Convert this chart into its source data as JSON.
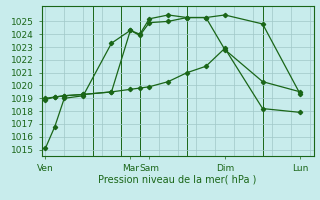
{
  "xlabel": "Pression niveau de la mer( hPa )",
  "bg_color": "#c8ecec",
  "grid_color": "#a0c8c8",
  "line_color": "#1a6618",
  "ylim": [
    1014.5,
    1026.2
  ],
  "xlim": [
    -0.2,
    14.2
  ],
  "xtick_labels": [
    "Ven",
    "Mar",
    "Sam",
    "Dim",
    "Lun"
  ],
  "xtick_positions": [
    0,
    4.5,
    5.5,
    9.5,
    13.5
  ],
  "vline_positions": [
    2.5,
    4.0,
    5.0,
    7.5,
    11.5
  ],
  "ytick_values": [
    1015,
    1016,
    1017,
    1018,
    1019,
    1020,
    1021,
    1022,
    1023,
    1024,
    1025
  ],
  "series1_x": [
    0,
    0.5,
    1.0,
    2.0,
    3.5,
    4.5,
    5.0,
    5.5,
    6.5,
    7.5,
    8.5,
    9.5,
    11.5,
    13.5
  ],
  "series1_y": [
    1015.1,
    1016.8,
    1019.0,
    1019.2,
    1023.3,
    1024.3,
    1024.0,
    1025.2,
    1025.5,
    1025.3,
    1025.3,
    1025.5,
    1024.8,
    1019.3
  ],
  "series2_x": [
    0,
    0.5,
    1.0,
    2.0,
    3.5,
    4.5,
    5.0,
    5.5,
    6.5,
    7.5,
    8.5,
    9.5,
    11.5,
    13.5
  ],
  "series2_y": [
    1018.9,
    1019.1,
    1019.2,
    1019.3,
    1019.5,
    1024.3,
    1023.9,
    1024.9,
    1025.0,
    1025.3,
    1025.3,
    1022.8,
    1020.3,
    1019.5
  ],
  "series3_x": [
    0,
    0.5,
    1.0,
    2.0,
    3.5,
    4.5,
    5.0,
    5.5,
    6.5,
    7.5,
    8.5,
    9.5,
    11.5,
    13.5
  ],
  "series3_y": [
    1019.0,
    1019.1,
    1019.2,
    1019.3,
    1019.5,
    1019.7,
    1019.8,
    1019.9,
    1020.3,
    1021.0,
    1021.5,
    1022.9,
    1018.2,
    1017.9
  ],
  "font_size": 6.5,
  "label_font_size": 7,
  "marker_size": 2.2,
  "line_width": 0.9
}
